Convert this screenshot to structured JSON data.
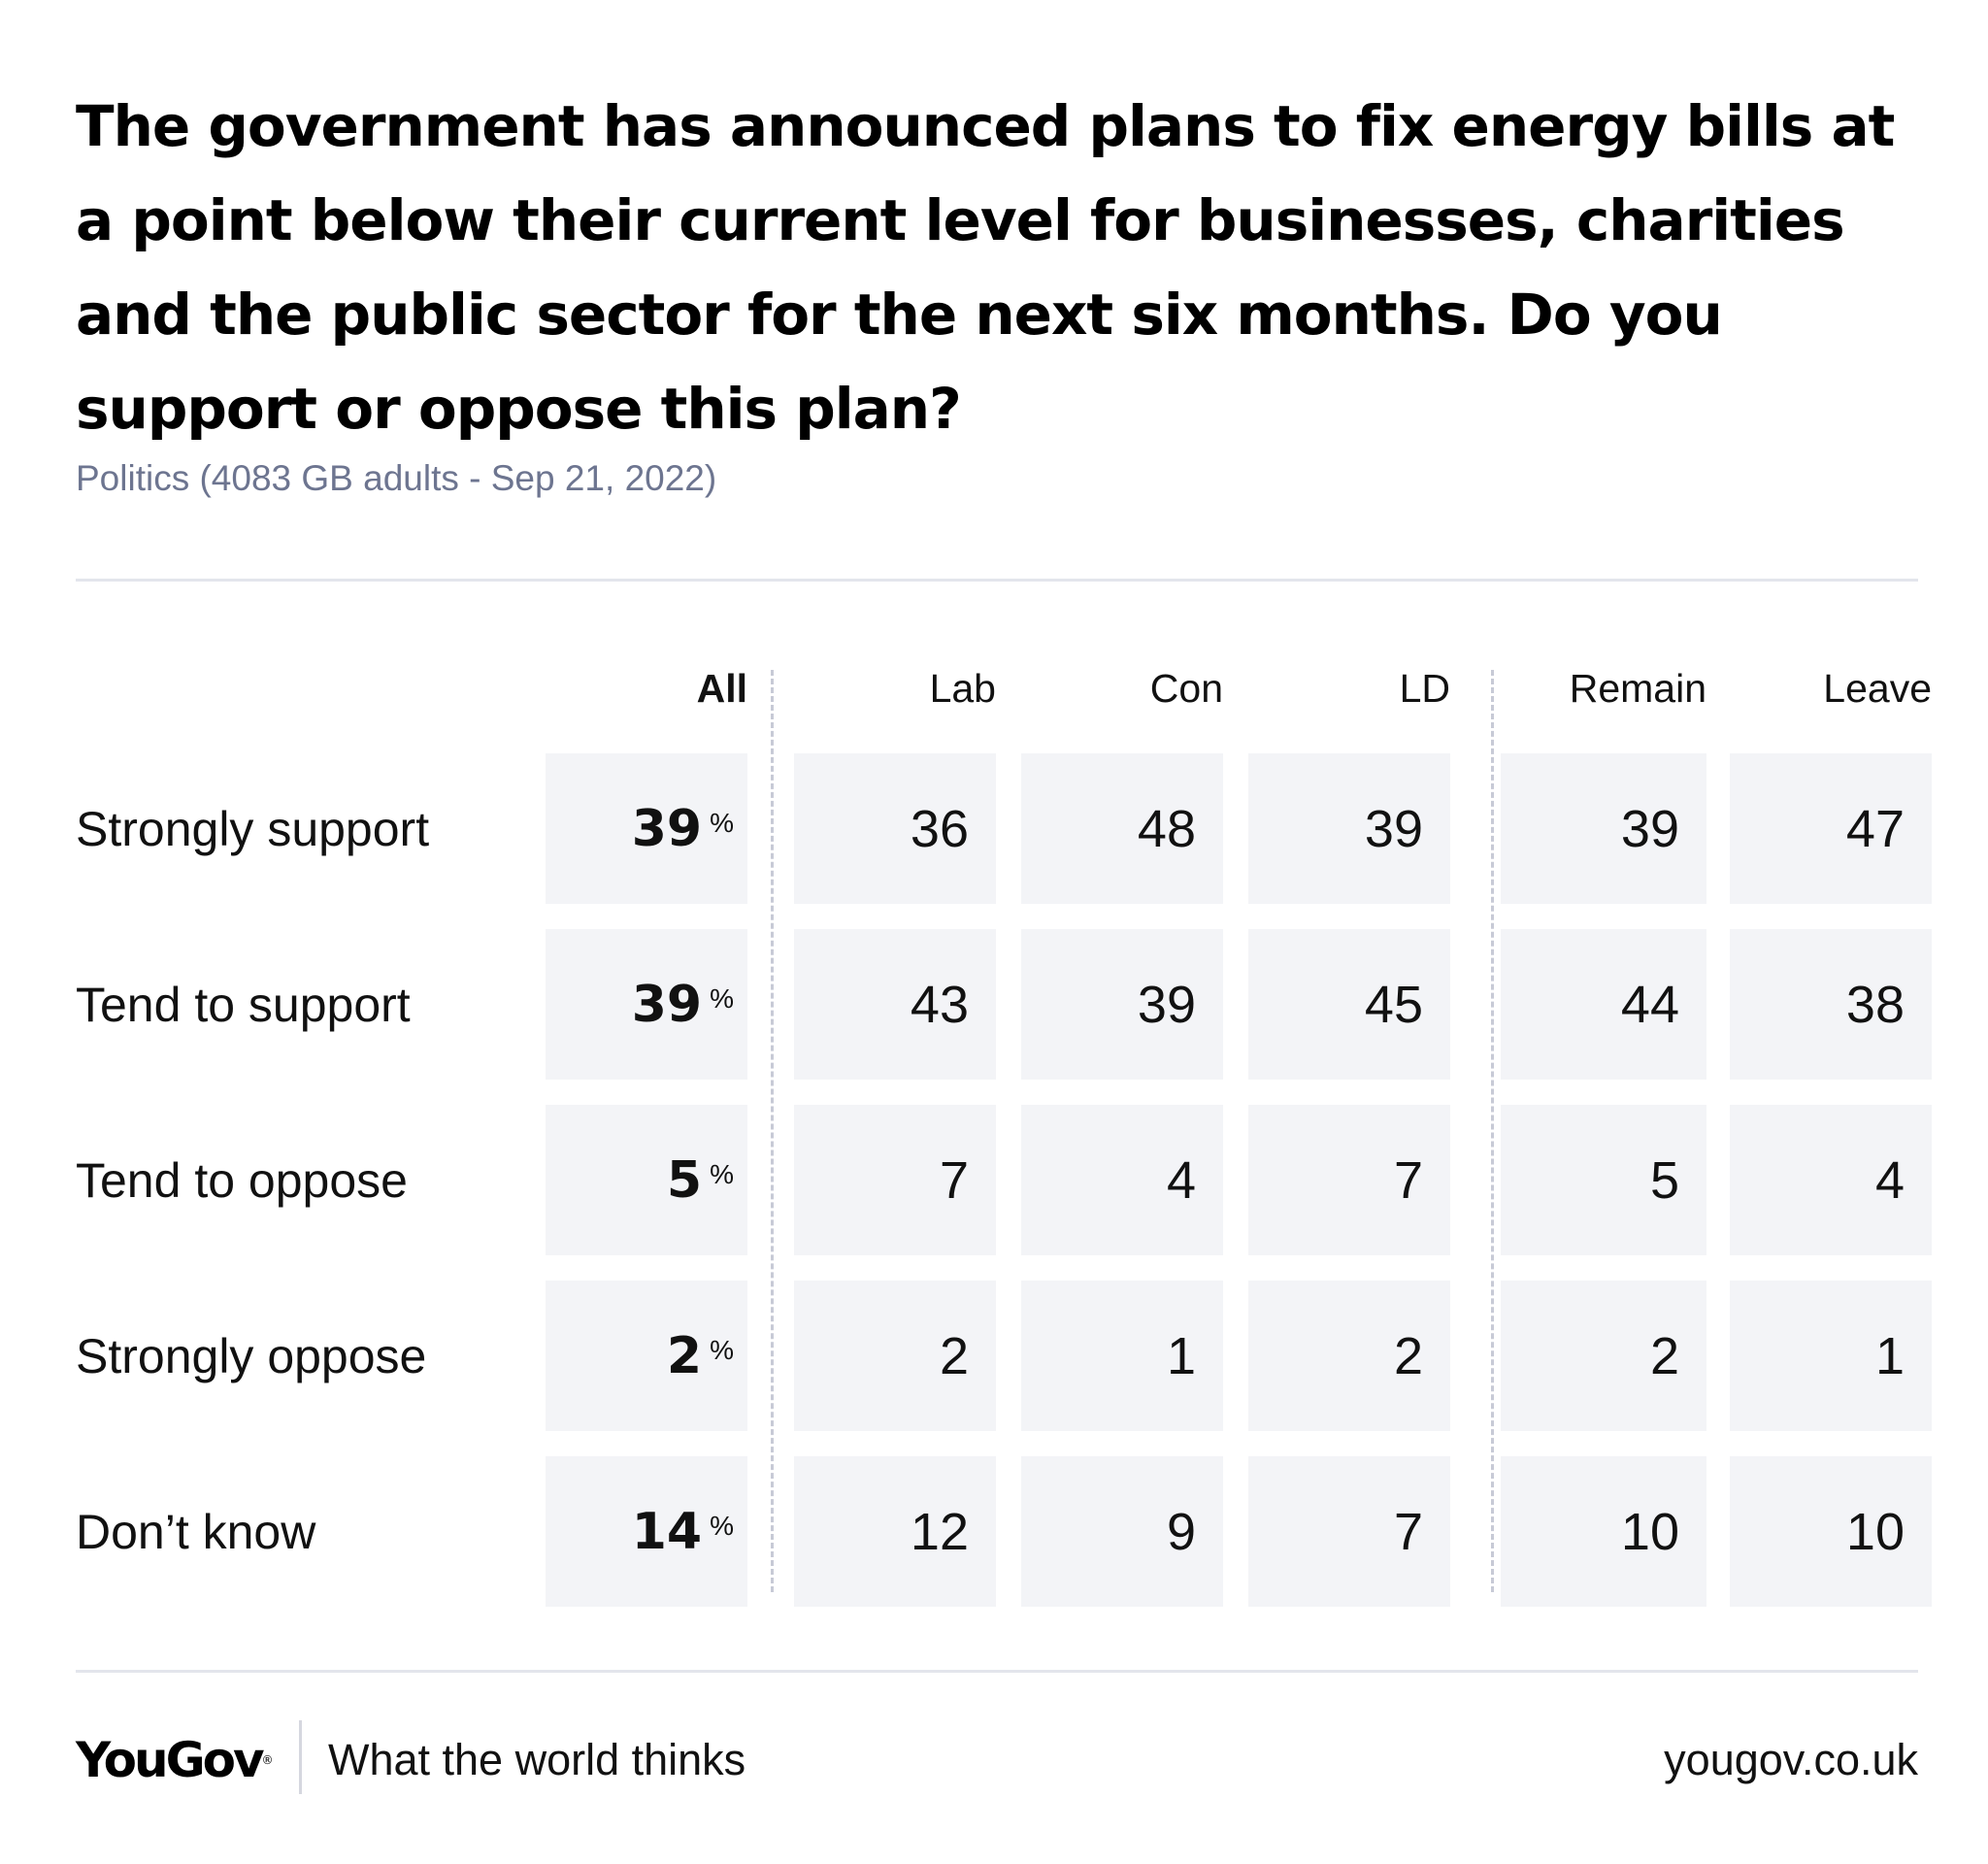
{
  "title": "The government has announced plans to fix energy bills at a point below their current level for businesses, charities and the public sector for the next six months. Do you support or oppose this plan?",
  "subtitle": "Politics (4083 GB adults - Sep 21, 2022)",
  "chart_data": {
    "type": "table",
    "title": "The government has announced plans to fix energy bills at a point below their current level for businesses, charities and the public sector for the next six months. Do you support or oppose this plan?",
    "columns": [
      "All",
      "Lab",
      "Con",
      "LD",
      "Remain",
      "Leave"
    ],
    "rows": [
      {
        "label": "Strongly support",
        "values": [
          39,
          36,
          48,
          39,
          39,
          47
        ]
      },
      {
        "label": "Tend to support",
        "values": [
          39,
          43,
          39,
          45,
          44,
          38
        ]
      },
      {
        "label": "Tend to oppose",
        "values": [
          5,
          7,
          4,
          7,
          5,
          4
        ]
      },
      {
        "label": "Strongly oppose",
        "values": [
          2,
          2,
          1,
          2,
          2,
          1
        ]
      },
      {
        "label": "Don’t know",
        "values": [
          14,
          12,
          9,
          7,
          10,
          10
        ]
      }
    ],
    "unit_symbol": "%",
    "colors": {
      "cell_background": "#f3f4f7",
      "subtitle": "#6d7590"
    }
  },
  "footer": {
    "logo": "YouGov",
    "tagline": "What the world thinks",
    "url": "yougov.co.uk"
  }
}
